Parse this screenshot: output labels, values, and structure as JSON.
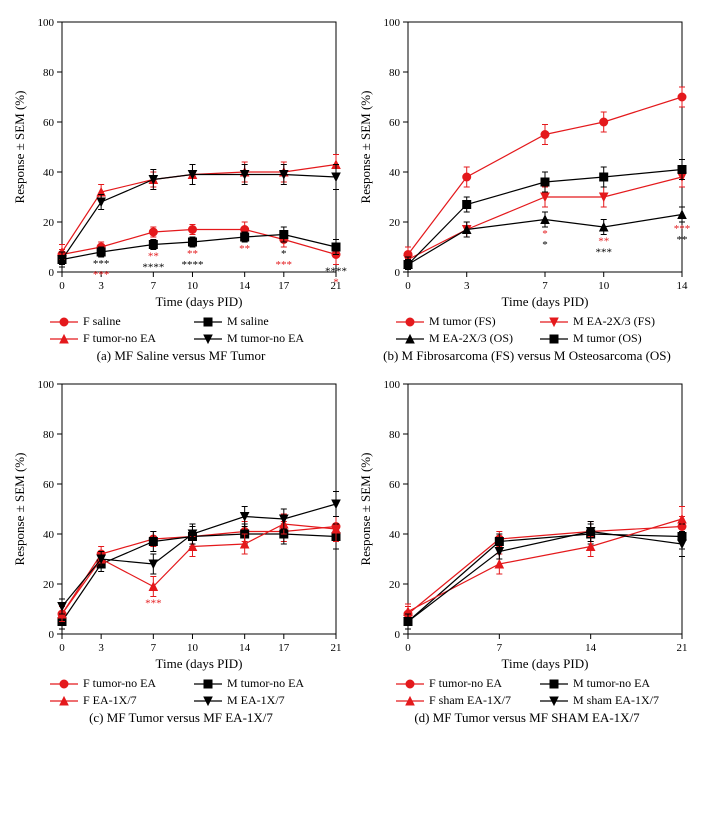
{
  "global": {
    "ylabel": "Response ± SEM (%)",
    "xlabel": "Time (days PID)",
    "ylim": [
      0,
      100
    ],
    "yticks": [
      0,
      20,
      40,
      60,
      80,
      100
    ],
    "axis_color": "#000000",
    "colors": {
      "red": "#e4191c",
      "black": "#000000"
    },
    "label_fontsize": 13,
    "tick_fontsize": 11,
    "line_width": 1.2,
    "marker_size": 4
  },
  "panels": {
    "a": {
      "caption": "(a) MF Saline versus MF Tumor",
      "xticks": [
        0,
        3,
        7,
        10,
        14,
        17,
        21
      ],
      "series": [
        {
          "label": "F saline",
          "color": "red",
          "marker": "circle",
          "x": [
            0,
            3,
            7,
            10,
            14,
            17,
            21
          ],
          "y": [
            7,
            10,
            16,
            17,
            17,
            13,
            7
          ],
          "err": [
            2,
            2,
            2,
            2,
            3,
            3,
            4
          ]
        },
        {
          "label": "M saline",
          "color": "black",
          "marker": "square",
          "x": [
            0,
            3,
            7,
            10,
            14,
            17,
            21
          ],
          "y": [
            5,
            8,
            11,
            12,
            14,
            15,
            10
          ],
          "err": [
            2,
            2,
            2,
            2,
            2,
            3,
            3
          ]
        },
        {
          "label": "F tumor-no EA",
          "color": "red",
          "marker": "triangle",
          "x": [
            0,
            3,
            7,
            10,
            14,
            17,
            21
          ],
          "y": [
            8,
            32,
            37,
            39,
            40,
            40,
            43
          ],
          "err": [
            3,
            3,
            3,
            4,
            4,
            4,
            4
          ]
        },
        {
          "label": "M tumor-no EA",
          "color": "black",
          "marker": "tridown",
          "x": [
            0,
            3,
            7,
            10,
            14,
            17,
            21
          ],
          "y": [
            5,
            28,
            37,
            39,
            39,
            39,
            38
          ],
          "err": [
            3,
            3,
            4,
            4,
            4,
            4,
            5
          ]
        }
      ],
      "sig": [
        {
          "x": 3,
          "labels": [
            {
              "t": "***",
              "c": "black",
              "dy": 0
            },
            {
              "t": "***",
              "c": "red",
              "dy": 1
            }
          ]
        },
        {
          "x": 7,
          "labels": [
            {
              "t": "**",
              "c": "red",
              "dy": 0
            },
            {
              "t": "****",
              "c": "black",
              "dy": 1
            }
          ]
        },
        {
          "x": 10,
          "labels": [
            {
              "t": "**",
              "c": "red",
              "dy": 0
            },
            {
              "t": "****",
              "c": "black",
              "dy": 1
            }
          ]
        },
        {
          "x": 14,
          "labels": [
            {
              "t": "**",
              "c": "red",
              "dy": 0
            }
          ]
        },
        {
          "x": 17,
          "labels": [
            {
              "t": "*",
              "c": "black",
              "dy": 0
            },
            {
              "t": "***",
              "c": "red",
              "dy": 1
            }
          ]
        },
        {
          "x": 21,
          "labels": [
            {
              "t": "****",
              "c": "black",
              "dy": 0
            },
            {
              "t": "*",
              "c": "red",
              "dy": 1
            }
          ]
        }
      ]
    },
    "b": {
      "caption": "(b) M Fibrosarcoma (FS) versus M Osteosarcoma (OS)",
      "xticks": [
        0,
        3,
        7,
        10,
        14
      ],
      "series": [
        {
          "label": "M tumor (FS)",
          "color": "red",
          "marker": "circle",
          "x": [
            0,
            3,
            7,
            10,
            14
          ],
          "y": [
            7,
            38,
            55,
            60,
            70
          ],
          "err": [
            3,
            4,
            4,
            4,
            4
          ]
        },
        {
          "label": "M EA-2X/3 (FS)",
          "color": "red",
          "marker": "tridown",
          "x": [
            0,
            3,
            7,
            10,
            14
          ],
          "y": [
            5,
            17,
            30,
            30,
            38
          ],
          "err": [
            3,
            3,
            4,
            4,
            4
          ]
        },
        {
          "label": "M EA-2X/3 (OS)",
          "color": "black",
          "marker": "triangle",
          "x": [
            0,
            3,
            7,
            10,
            14
          ],
          "y": [
            3,
            17,
            21,
            18,
            23
          ],
          "err": [
            2,
            3,
            3,
            3,
            3
          ]
        },
        {
          "label": "M tumor (OS)",
          "color": "black",
          "marker": "square",
          "x": [
            0,
            3,
            7,
            10,
            14
          ],
          "y": [
            3,
            27,
            36,
            38,
            41
          ],
          "err": [
            3,
            3,
            4,
            4,
            4
          ]
        }
      ],
      "sig": [
        {
          "x": 7,
          "labels": [
            {
              "t": "*",
              "c": "red",
              "dy": 0
            },
            {
              "t": "*",
              "c": "black",
              "dy": 1
            }
          ]
        },
        {
          "x": 10,
          "labels": [
            {
              "t": "**",
              "c": "red",
              "dy": 0
            },
            {
              "t": "***",
              "c": "black",
              "dy": 1
            }
          ]
        },
        {
          "x": 14,
          "labels": [
            {
              "t": "***",
              "c": "red",
              "dy": 0
            },
            {
              "t": "**",
              "c": "black",
              "dy": 1
            }
          ]
        }
      ]
    },
    "c": {
      "caption": "(c) MF Tumor versus MF EA-1X/7",
      "xticks": [
        0,
        3,
        7,
        10,
        14,
        17,
        21
      ],
      "series": [
        {
          "label": "F tumor-no EA",
          "color": "red",
          "marker": "circle",
          "x": [
            0,
            3,
            7,
            10,
            14,
            17,
            21
          ],
          "y": [
            8,
            32,
            38,
            39,
            41,
            41,
            43
          ],
          "err": [
            3,
            3,
            3,
            4,
            4,
            4,
            4
          ]
        },
        {
          "label": "M tumor-no EA",
          "color": "black",
          "marker": "square",
          "x": [
            0,
            3,
            7,
            10,
            14,
            17,
            21
          ],
          "y": [
            5,
            28,
            37,
            39,
            40,
            40,
            39
          ],
          "err": [
            3,
            3,
            4,
            4,
            4,
            4,
            5
          ]
        },
        {
          "label": "F EA-1X/7",
          "color": "red",
          "marker": "triangle",
          "x": [
            0,
            3,
            7,
            10,
            14,
            17,
            21
          ],
          "y": [
            8,
            30,
            19,
            35,
            36,
            44,
            42
          ],
          "err": [
            3,
            3,
            4,
            4,
            4,
            4,
            5
          ]
        },
        {
          "label": "M EA-1X/7",
          "color": "black",
          "marker": "tridown",
          "x": [
            0,
            3,
            7,
            10,
            14,
            17,
            21
          ],
          "y": [
            11,
            30,
            28,
            40,
            47,
            46,
            52
          ],
          "err": [
            3,
            3,
            4,
            4,
            4,
            4,
            5
          ]
        }
      ],
      "sig": [
        {
          "x": 7,
          "labels": [
            {
              "t": "***",
              "c": "red",
              "dy": 0
            }
          ]
        }
      ]
    },
    "d": {
      "caption": "(d) MF Tumor versus MF SHAM EA-1X/7",
      "xticks": [
        0,
        7,
        14,
        21
      ],
      "series": [
        {
          "label": "F tumor-no EA",
          "color": "red",
          "marker": "circle",
          "x": [
            0,
            7,
            14,
            21
          ],
          "y": [
            8,
            38,
            41,
            43
          ],
          "err": [
            3,
            3,
            4,
            4
          ]
        },
        {
          "label": "M tumor-no EA",
          "color": "black",
          "marker": "square",
          "x": [
            0,
            7,
            14,
            21
          ],
          "y": [
            5,
            37,
            40,
            39
          ],
          "err": [
            3,
            3,
            4,
            5
          ]
        },
        {
          "label": "F sham EA-1X/7",
          "color": "red",
          "marker": "triangle",
          "x": [
            0,
            7,
            14,
            21
          ],
          "y": [
            9,
            28,
            35,
            46
          ],
          "err": [
            3,
            4,
            4,
            5
          ]
        },
        {
          "label": "M sham EA-1X/7",
          "color": "black",
          "marker": "tridown",
          "x": [
            0,
            7,
            14,
            21
          ],
          "y": [
            5,
            33,
            41,
            36
          ],
          "err": [
            3,
            3,
            4,
            5
          ]
        }
      ],
      "sig": []
    }
  }
}
